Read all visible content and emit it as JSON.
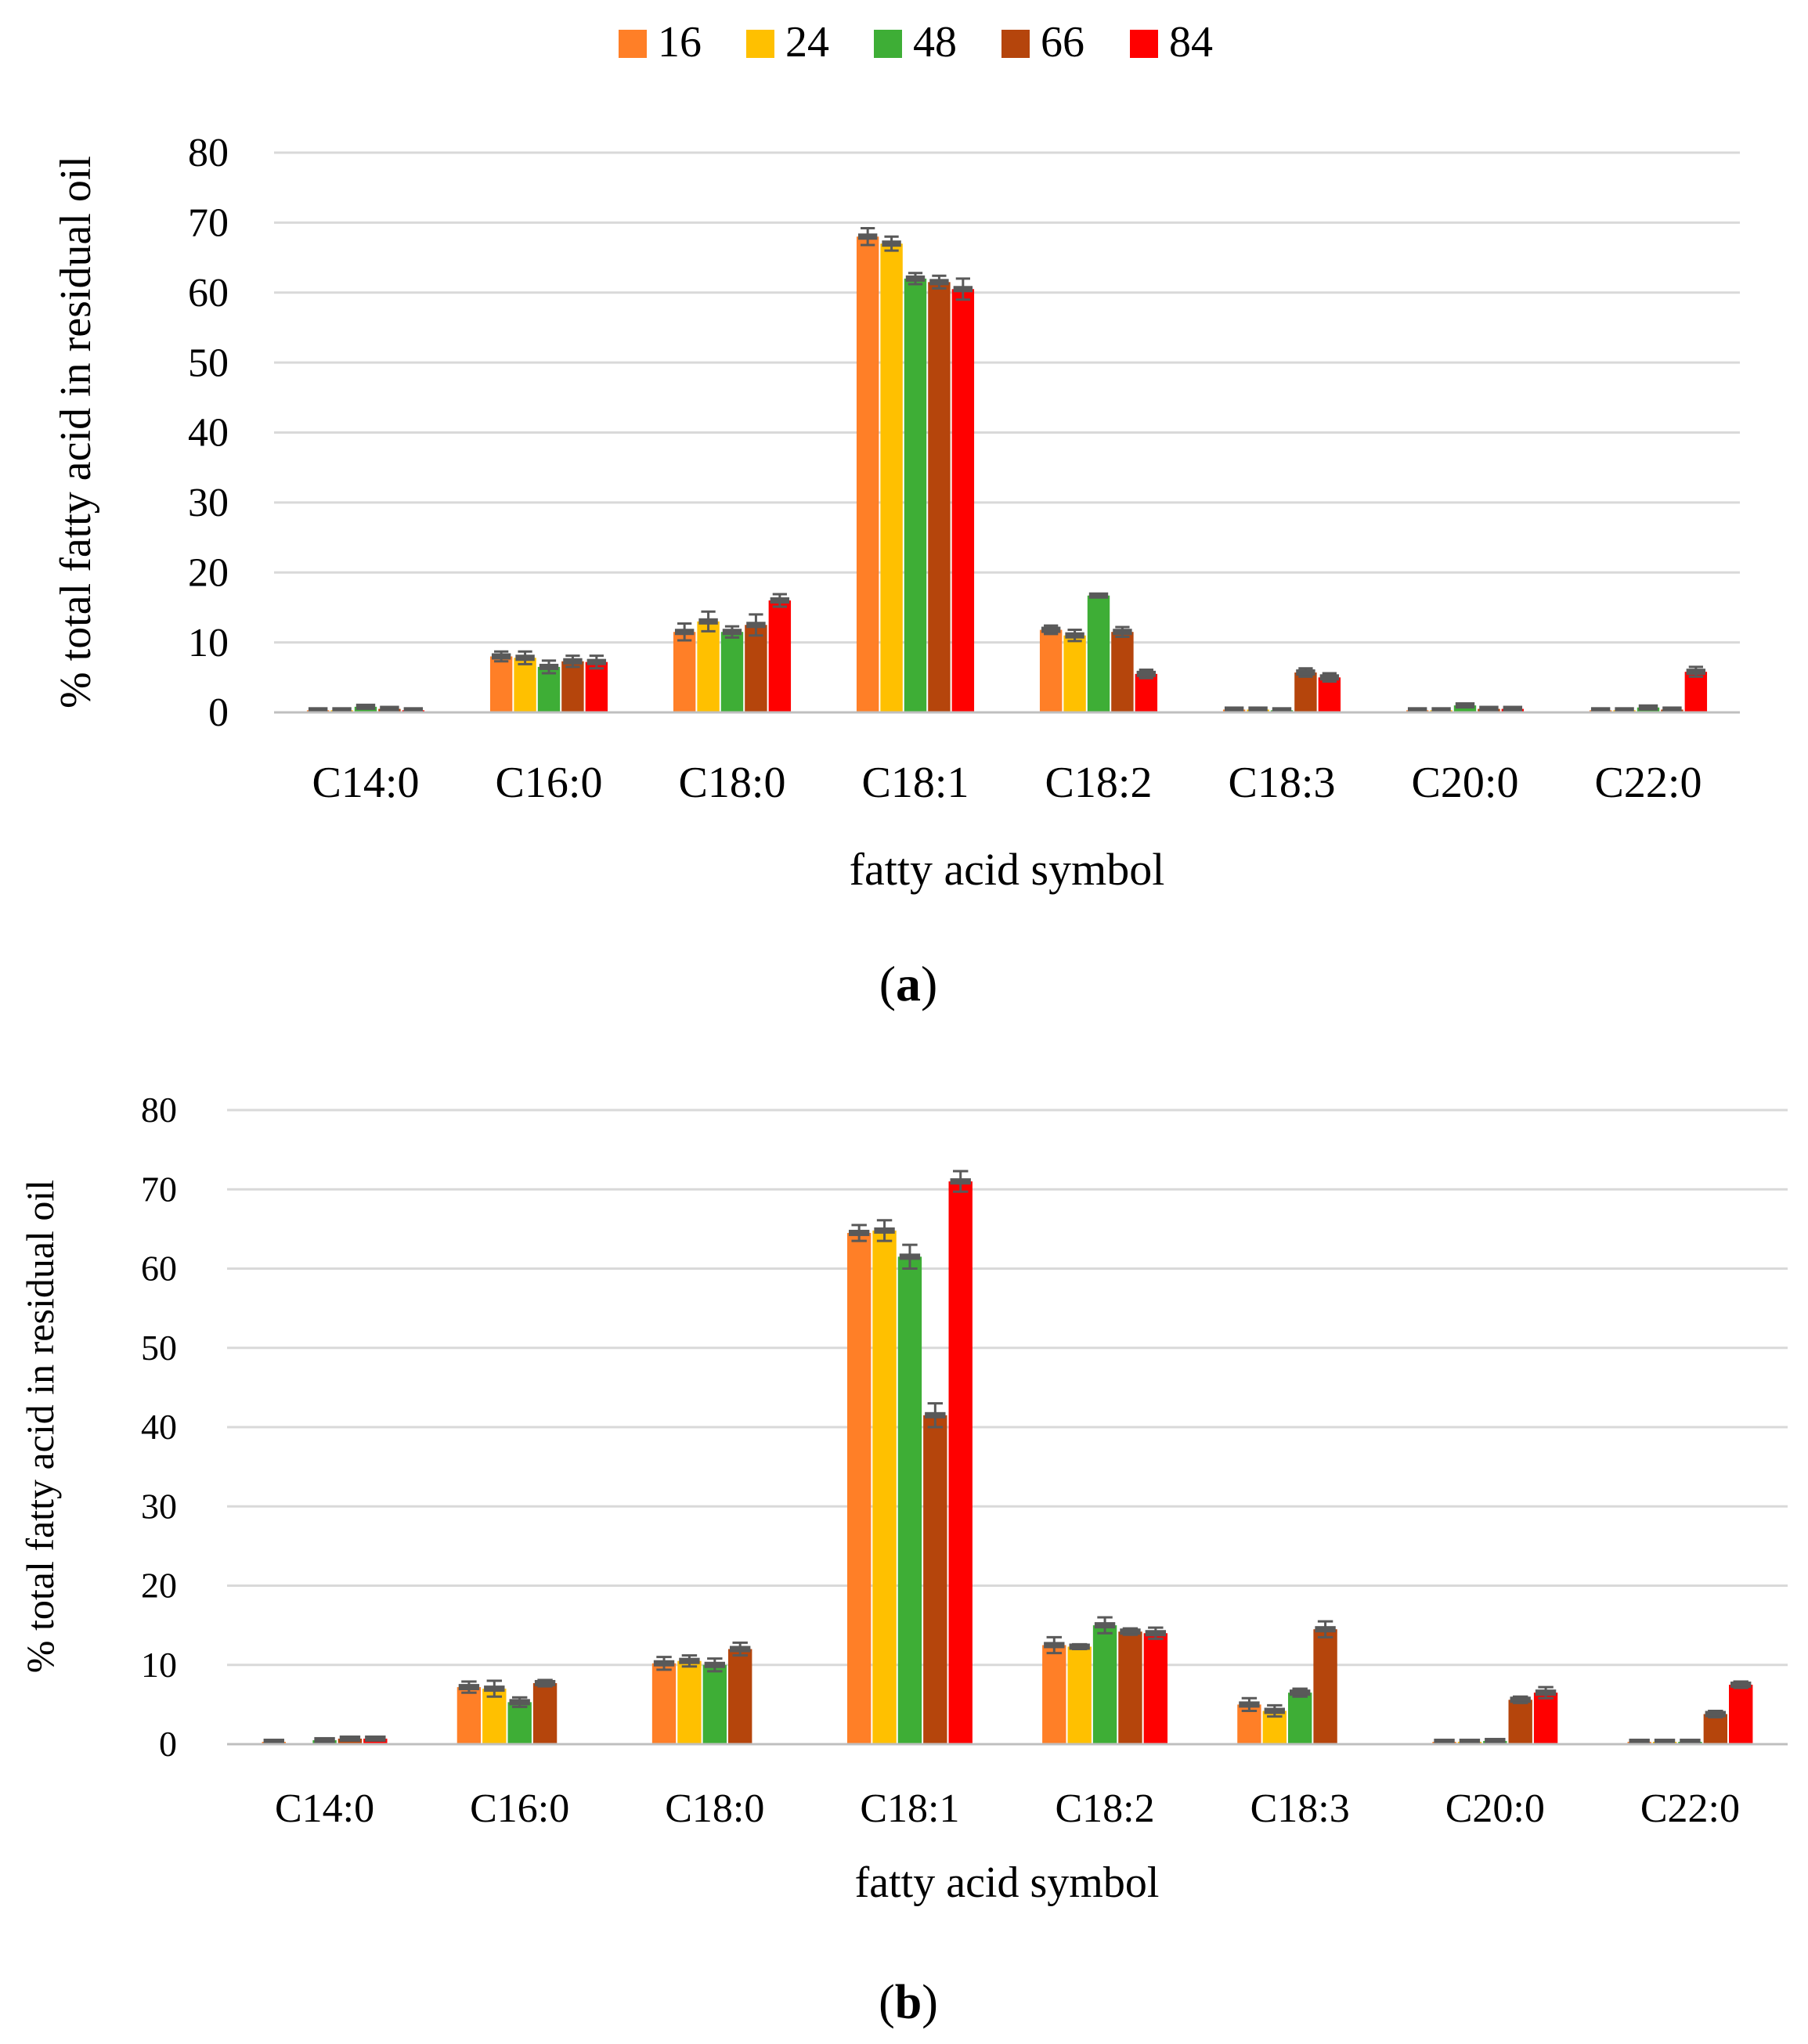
{
  "legend": {
    "series": [
      "16",
      "24",
      "48",
      "66",
      "84"
    ],
    "placement": "top-center"
  },
  "colors": {
    "series": [
      "#FF7F27",
      "#FFC000",
      "#3EAE36",
      "#B5450C",
      "#FF0000"
    ],
    "error_cap": "#595959",
    "gridline": "#D9D9D9",
    "axis": "#BFBFBF",
    "text": "#000000"
  },
  "panels": [
    {
      "caption_letter": "a",
      "caption_open": "(",
      "caption_close": ")"
    },
    {
      "caption_letter": "b",
      "caption_open": "(",
      "caption_close": ")"
    }
  ],
  "chart_data": [
    {
      "type": "bar",
      "title": "",
      "xlabel": "fatty acid symbol",
      "ylabel": "% total fatty acid in residual oil",
      "ylim": [
        0,
        80
      ],
      "yticks": [
        0,
        10,
        20,
        30,
        40,
        50,
        60,
        70,
        80
      ],
      "grid": true,
      "legend_placement": "top-center",
      "categories": [
        "C14:0",
        "C16:0",
        "C18:0",
        "C18:1",
        "C18:2",
        "C18:3",
        "C20:0",
        "C22:0"
      ],
      "series": [
        {
          "name": "16",
          "values": [
            0.3,
            8.0,
            11.5,
            68.0,
            11.8,
            0.4,
            0.3,
            0.3
          ],
          "errors": [
            0.2,
            0.7,
            1.2,
            1.2,
            0.6,
            0.2,
            0.2,
            0.2
          ]
        },
        {
          "name": "24",
          "values": [
            0.3,
            7.8,
            13.0,
            67.0,
            11.0,
            0.4,
            0.3,
            0.3
          ],
          "errors": [
            0.2,
            0.9,
            1.4,
            1.0,
            0.8,
            0.2,
            0.2,
            0.2
          ]
        },
        {
          "name": "48",
          "values": [
            0.8,
            6.5,
            11.5,
            62.0,
            16.7,
            0.3,
            1.0,
            0.7
          ],
          "errors": [
            0.2,
            0.9,
            0.8,
            0.8,
            0.0,
            0.1,
            0.2,
            0.2
          ]
        },
        {
          "name": "66",
          "values": [
            0.5,
            7.3,
            12.5,
            61.5,
            11.5,
            5.7,
            0.5,
            0.4
          ],
          "errors": [
            0.2,
            0.8,
            1.5,
            0.9,
            0.7,
            0.6,
            0.2,
            0.2
          ]
        },
        {
          "name": "84",
          "values": [
            0.3,
            7.2,
            16.0,
            60.5,
            5.5,
            5.0,
            0.5,
            5.8
          ],
          "errors": [
            0.2,
            0.9,
            0.9,
            1.5,
            0.6,
            0.6,
            0.2,
            0.7
          ]
        }
      ]
    },
    {
      "type": "bar",
      "title": "",
      "xlabel": "fatty acid symbol",
      "ylabel": "% total fatty acid in residual oil",
      "ylim": [
        0,
        80
      ],
      "yticks": [
        0,
        10,
        20,
        30,
        40,
        50,
        60,
        70,
        80
      ],
      "grid": true,
      "legend_placement": "top-center",
      "categories": [
        "C14:0",
        "C16:0",
        "C18:0",
        "C18:1",
        "C18:2",
        "C18:3",
        "C20:0",
        "C22:0"
      ],
      "series": [
        {
          "name": "16",
          "values": [
            0.3,
            7.2,
            10.2,
            64.5,
            12.5,
            5.0,
            0.3,
            0.3
          ],
          "errors": [
            0.1,
            0.7,
            0.8,
            1.0,
            1.0,
            0.8,
            0.1,
            0.1
          ]
        },
        {
          "name": "24",
          "values": [
            0.0,
            7.0,
            10.5,
            64.8,
            12.3,
            4.2,
            0.3,
            0.3
          ],
          "errors": [
            0.0,
            1.0,
            0.7,
            1.3,
            0.3,
            0.7,
            0.1,
            0.1
          ]
        },
        {
          "name": "48",
          "values": [
            0.5,
            5.3,
            10.0,
            61.5,
            15.0,
            6.5,
            0.4,
            0.3
          ],
          "errors": [
            0.1,
            0.6,
            0.8,
            1.5,
            1.0,
            0.5,
            0.1,
            0.1
          ]
        },
        {
          "name": "66",
          "values": [
            0.7,
            7.7,
            12.0,
            41.5,
            14.2,
            14.5,
            5.6,
            3.8
          ],
          "errors": [
            0.2,
            0.4,
            0.8,
            1.5,
            0.4,
            1.0,
            0.4,
            0.4
          ]
        },
        {
          "name": "84",
          "values": [
            0.7,
            0.0,
            0.0,
            71.0,
            14.0,
            0.0,
            6.5,
            7.5
          ],
          "errors": [
            0.2,
            0.0,
            0.0,
            1.3,
            0.7,
            0.0,
            0.7,
            0.4
          ]
        }
      ]
    }
  ]
}
